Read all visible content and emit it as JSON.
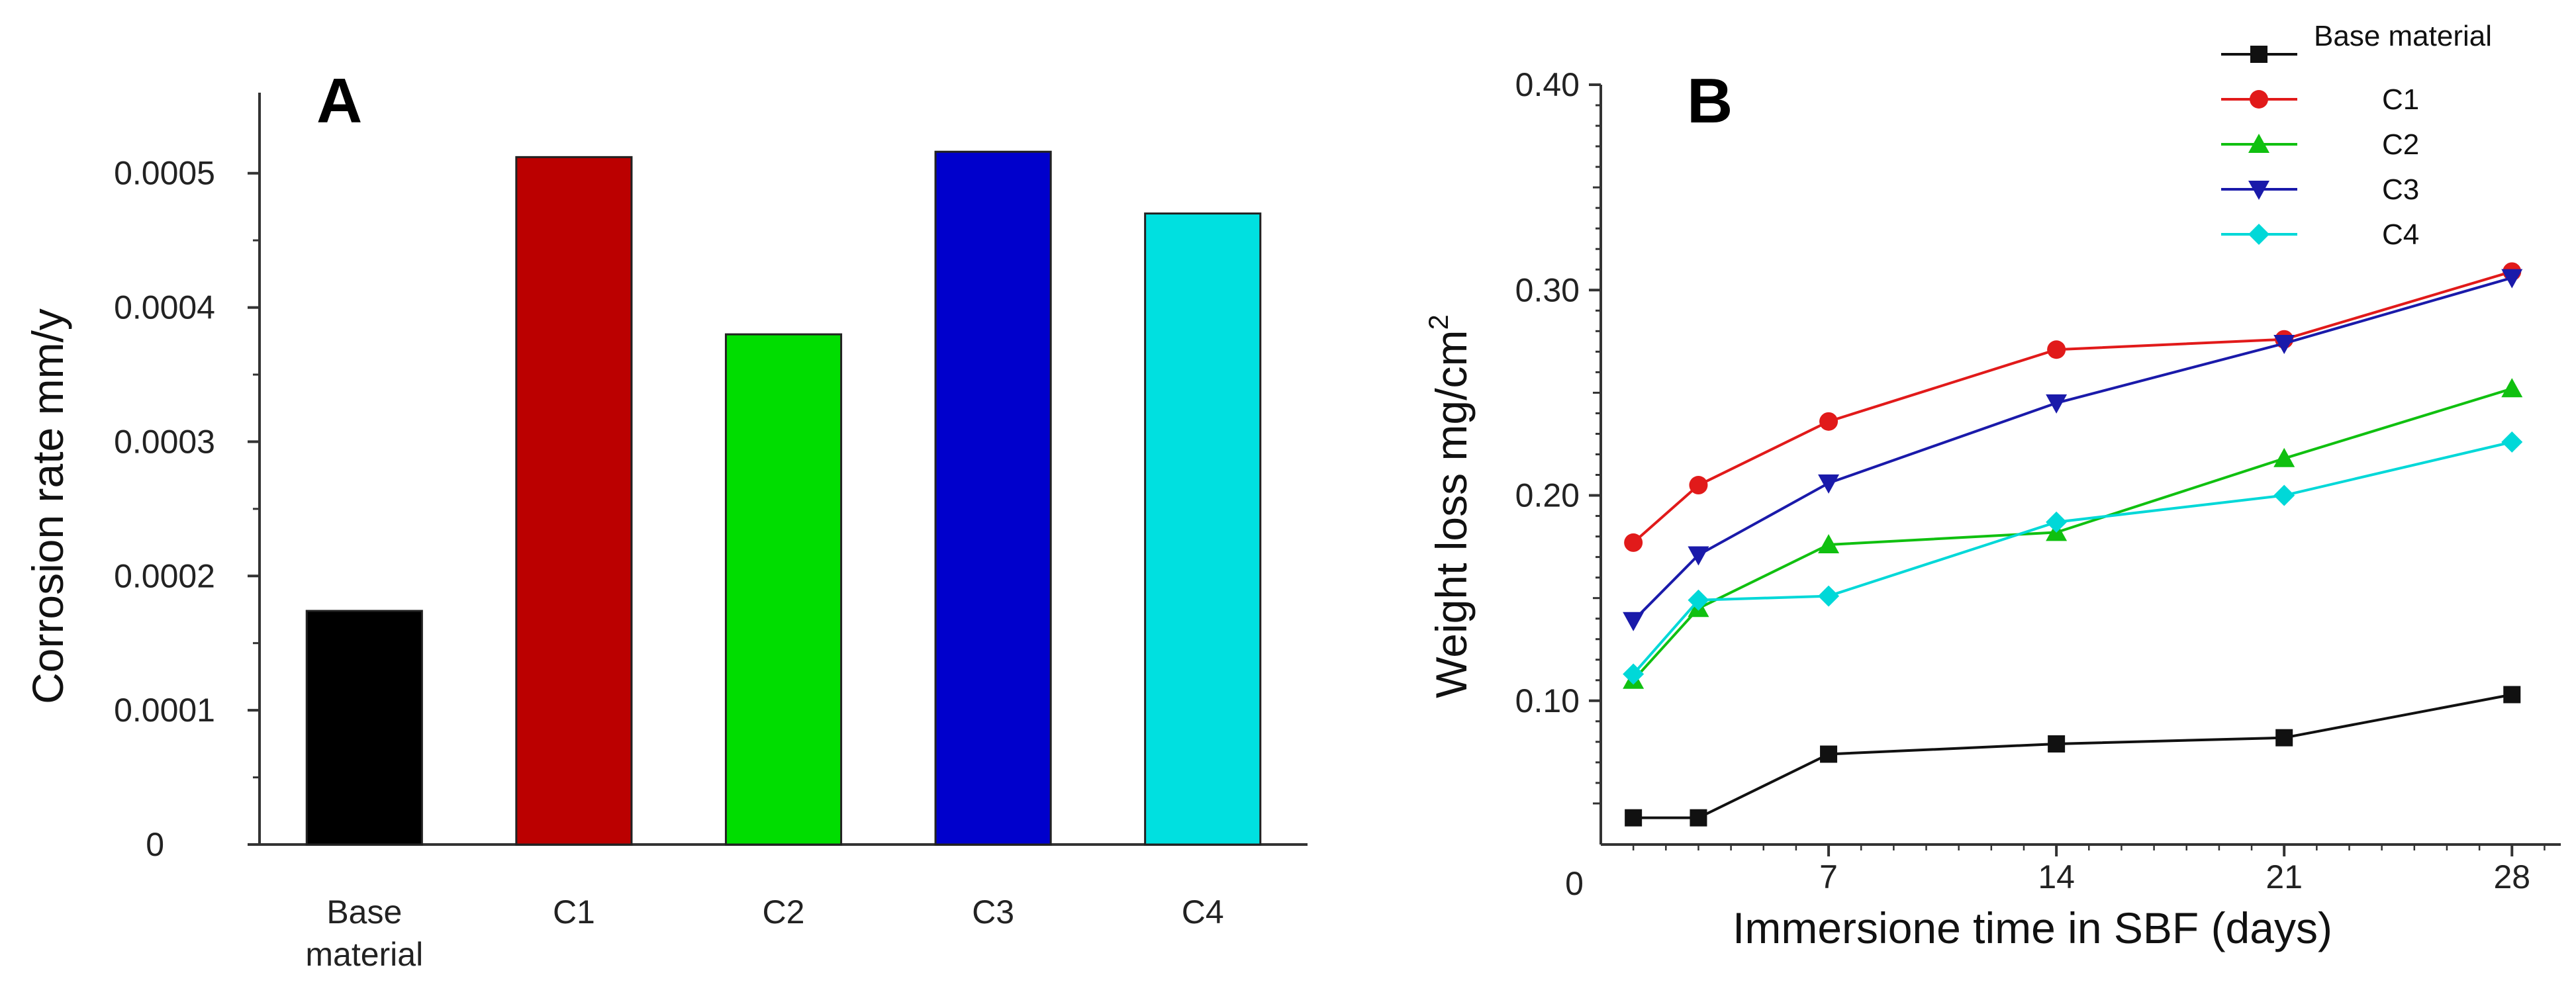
{
  "chart_data": [
    {
      "type": "bar",
      "panel_label": "A",
      "categories": [
        "Base material",
        "C1",
        "C2",
        "C3",
        "C4"
      ],
      "category_lines": [
        [
          "Base",
          "material"
        ],
        [
          "C1"
        ],
        [
          "C2"
        ],
        [
          "C3"
        ],
        [
          "C4"
        ]
      ],
      "values": [
        0.000174,
        0.000512,
        0.00038,
        0.000516,
        0.00047
      ],
      "colors": [
        "#000000",
        "#bb0000",
        "#00dd00",
        "#0000cc",
        "#00e0e0"
      ],
      "title": "",
      "xlabel": "",
      "ylabel": "Corrosion rate mm/y",
      "ylim": [
        0,
        0.00056
      ],
      "yticks": [
        0,
        0.0001,
        0.0002,
        0.0003,
        0.0004,
        0.0005
      ],
      "ytick_labels": [
        "0",
        "0.0001",
        "0.0002",
        "0.0003",
        "0.0004",
        "0.0005"
      ],
      "grid": false
    },
    {
      "type": "line",
      "panel_label": "B",
      "title": "",
      "xlabel": "Immersione time in SBF (days)",
      "ylabel": "Weight loss mg/cm",
      "ylabel_sup": "2",
      "xlim": [
        0,
        29.5
      ],
      "ylim": [
        0.03,
        0.4
      ],
      "xticks": [
        7,
        14,
        21,
        28
      ],
      "xtick_labels": [
        "7",
        "14",
        "21",
        "28"
      ],
      "yticks": [
        0.1,
        0.2,
        0.3,
        0.4
      ],
      "ytick_labels": [
        "0.10",
        "0.20",
        "0.30",
        "0.40"
      ],
      "origin_label": "0",
      "legend_position": "top-right",
      "grid": false,
      "series": [
        {
          "name": "Base material",
          "marker": "square",
          "color": "#111111",
          "x": [
            1,
            3,
            7,
            14,
            21,
            28
          ],
          "y": [
            0.043,
            0.043,
            0.074,
            0.079,
            0.082,
            0.103
          ]
        },
        {
          "name": "C1",
          "marker": "circle",
          "color": "#e11a1a",
          "x": [
            1,
            3,
            7,
            14,
            21,
            28
          ],
          "y": [
            0.177,
            0.205,
            0.236,
            0.271,
            0.276,
            0.309
          ]
        },
        {
          "name": "C2",
          "marker": "triangle-up",
          "color": "#10c010",
          "x": [
            1,
            3,
            7,
            14,
            21,
            28
          ],
          "y": [
            0.11,
            0.145,
            0.176,
            0.182,
            0.218,
            0.252
          ]
        },
        {
          "name": "C3",
          "marker": "triangle-down",
          "color": "#1a1aaa",
          "x": [
            1,
            3,
            7,
            14,
            21,
            28
          ],
          "y": [
            0.139,
            0.171,
            0.206,
            0.245,
            0.274,
            0.306
          ]
        },
        {
          "name": "C4",
          "marker": "diamond",
          "color": "#00d8d8",
          "x": [
            1,
            3,
            7,
            14,
            21,
            28
          ],
          "y": [
            0.113,
            0.149,
            0.151,
            0.187,
            0.2,
            0.226
          ]
        }
      ]
    }
  ]
}
